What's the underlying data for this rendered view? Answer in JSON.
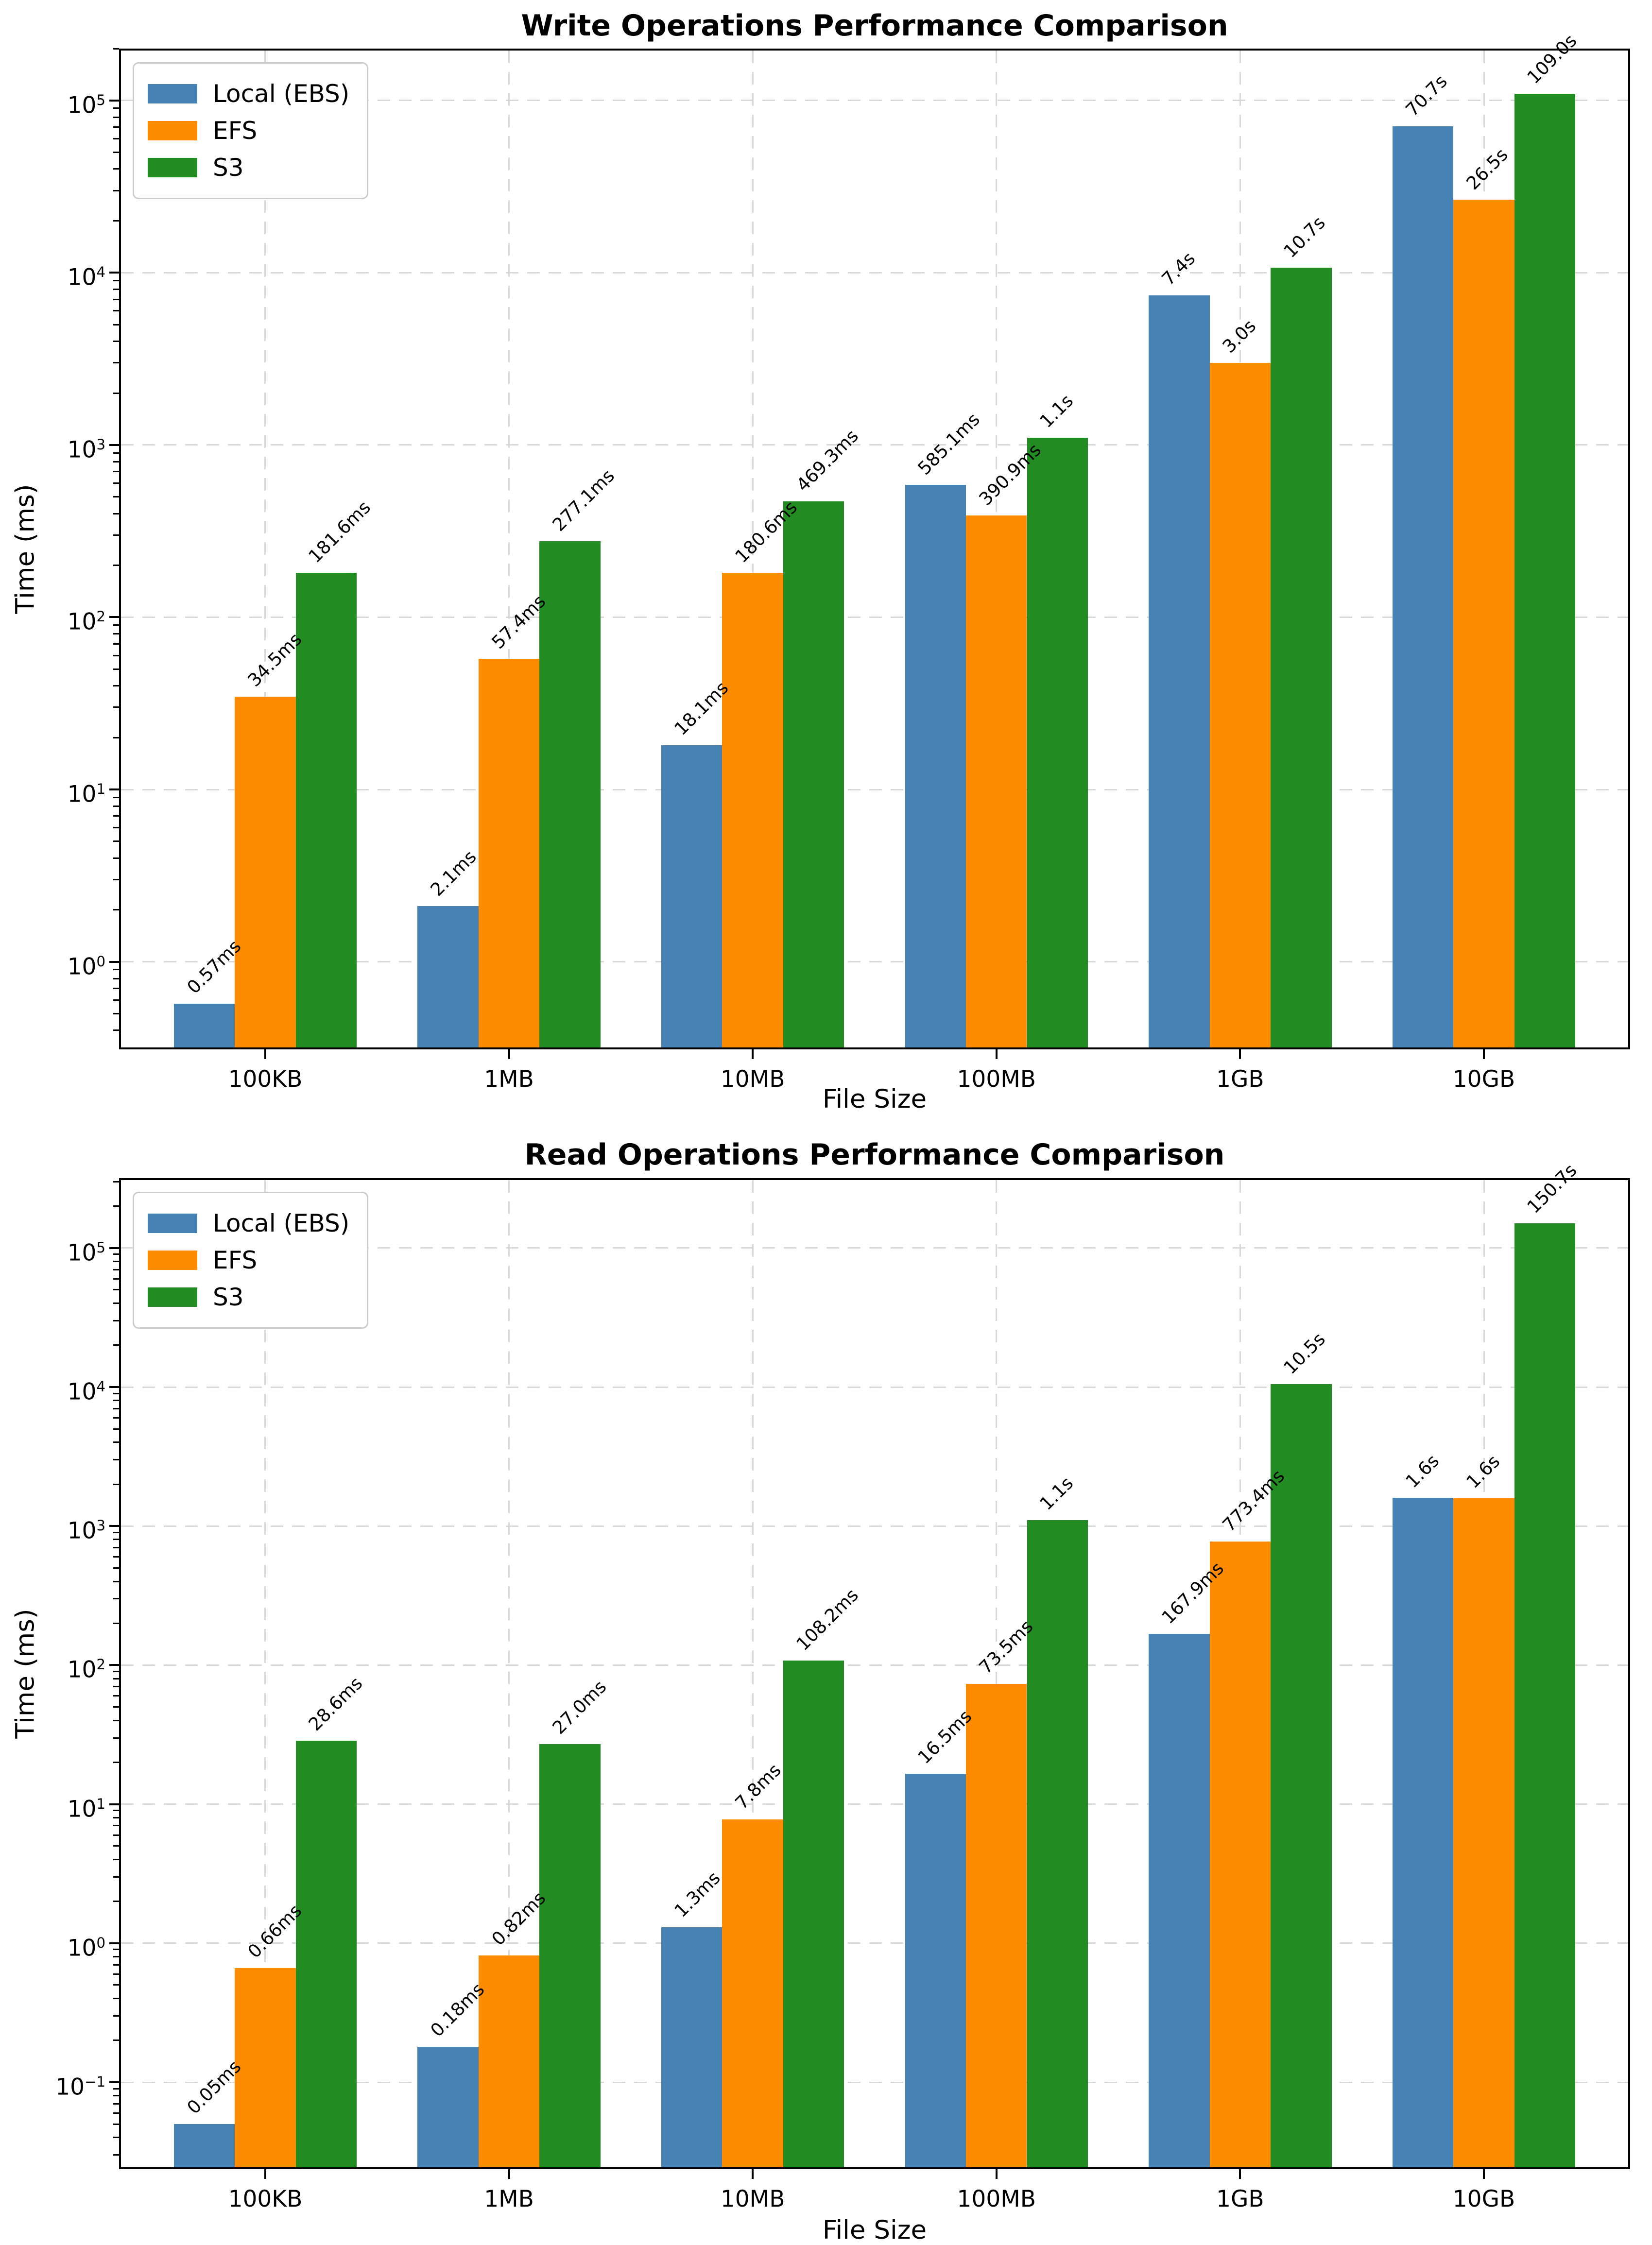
{
  "colors": {
    "local_ebs": "#4682B4",
    "efs": "#FF8C00",
    "s3": "#228B22",
    "grid": "#d9d9d9",
    "axis": "#000000",
    "background": "#ffffff"
  },
  "chart_data": [
    {
      "type": "bar",
      "title": "Write Operations Performance Comparison",
      "xlabel": "File Size",
      "ylabel": "Time (ms)",
      "yscale": "log",
      "grid": true,
      "legend_position": "upper left",
      "categories": [
        "100KB",
        "1MB",
        "10MB",
        "100MB",
        "1GB",
        "10GB"
      ],
      "ylim": [
        0.31,
        200000
      ],
      "ytick_exponents": [
        0,
        1,
        2,
        3,
        4,
        5
      ],
      "series": [
        {
          "name": "Local (EBS)",
          "color": "#4682B4",
          "values_ms": [
            0.57,
            2.1,
            18.1,
            585.1,
            7400,
            70700
          ],
          "labels": [
            "0.57ms",
            "2.1ms",
            "18.1ms",
            "585.1ms",
            "7.4s",
            "70.7s"
          ]
        },
        {
          "name": "EFS",
          "color": "#FF8C00",
          "values_ms": [
            34.5,
            57.4,
            180.6,
            390.9,
            3000,
            26500
          ],
          "labels": [
            "34.5ms",
            "57.4ms",
            "180.6ms",
            "390.9ms",
            "3.0s",
            "26.5s"
          ]
        },
        {
          "name": "S3",
          "color": "#228B22",
          "values_ms": [
            181.6,
            277.1,
            469.3,
            1100,
            10700,
            109000
          ],
          "labels": [
            "181.6ms",
            "277.1ms",
            "469.3ms",
            "1.1s",
            "10.7s",
            "109.0s"
          ]
        }
      ]
    },
    {
      "type": "bar",
      "title": "Read Operations Performance Comparison",
      "xlabel": "File Size",
      "ylabel": "Time (ms)",
      "yscale": "log",
      "grid": true,
      "legend_position": "upper left",
      "categories": [
        "100KB",
        "1MB",
        "10MB",
        "100MB",
        "1GB",
        "10GB"
      ],
      "ylim": [
        0.0237,
        318000
      ],
      "ytick_exponents": [
        -1,
        0,
        1,
        2,
        3,
        4,
        5
      ],
      "series": [
        {
          "name": "Local (EBS)",
          "color": "#4682B4",
          "values_ms": [
            0.05,
            0.18,
            1.3,
            16.5,
            167.9,
            1600
          ],
          "labels": [
            "0.05ms",
            "0.18ms",
            "1.3ms",
            "16.5ms",
            "167.9ms",
            "1.6s"
          ]
        },
        {
          "name": "EFS",
          "color": "#FF8C00",
          "values_ms": [
            0.66,
            0.82,
            7.8,
            73.5,
            773.4,
            1580
          ],
          "labels": [
            "0.66ms",
            "0.82ms",
            "7.8ms",
            "73.5ms",
            "773.4ms",
            "1.6s"
          ]
        },
        {
          "name": "S3",
          "color": "#228B22",
          "values_ms": [
            28.6,
            27.0,
            108.2,
            1100,
            10500,
            150700
          ],
          "labels": [
            "28.6ms",
            "27.0ms",
            "108.2ms",
            "1.1s",
            "10.5s",
            "150.7s"
          ]
        }
      ]
    }
  ]
}
